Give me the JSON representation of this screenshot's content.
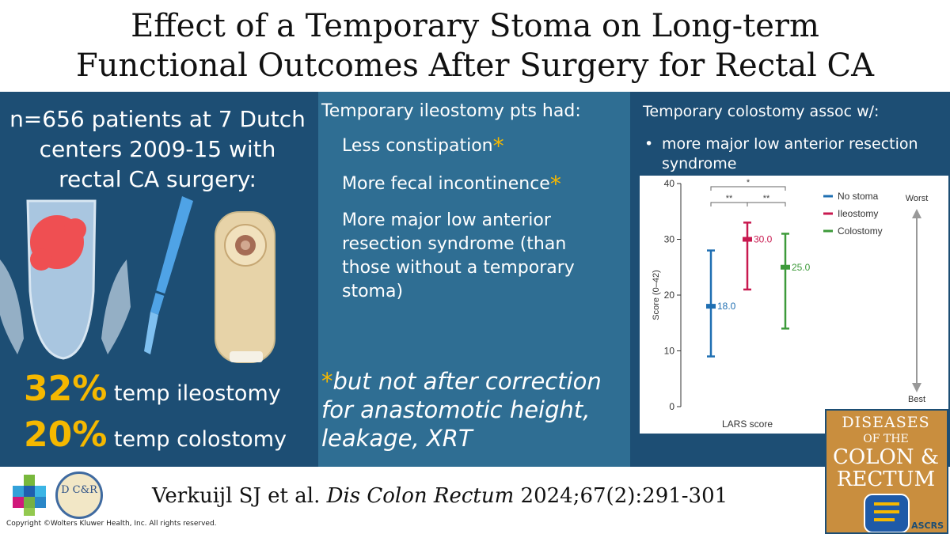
{
  "title": {
    "line1": "Effect of a Temporary Stoma on Long-term",
    "line2": "Functional Outcomes After Surgery for Rectal CA"
  },
  "left": {
    "heading": "n=656 patients at 7 Dutch centers 2009-15 with rectal CA surgery:",
    "stat1_pct": "32%",
    "stat1_label": "temp ileostomy",
    "stat2_pct": "20%",
    "stat2_label": "temp colostomy"
  },
  "middle": {
    "heading": "Temporary ileostomy pts had:",
    "items": [
      "Less constipation",
      "More fecal incontinence",
      "More major low anterior resection syndrome (than those without a temporary stoma)"
    ],
    "star": "*",
    "footnote": "but not after correction for anastomotic height, leakage, XRT"
  },
  "right": {
    "heading": "Temporary colostomy assoc w/:",
    "bullet": "more major low anterior resection syndrome"
  },
  "chart_data": {
    "type": "error-bar",
    "xlabel": "LARS score",
    "ylabel": "Score (0–42)",
    "ylim": [
      0,
      40
    ],
    "yticks": [
      0,
      10,
      20,
      30,
      40
    ],
    "series": [
      {
        "name": "No stoma",
        "value": 18.0,
        "label": "18.0",
        "low": 9,
        "high": 28,
        "color": "#1f6fb2"
      },
      {
        "name": "Ileostomy",
        "value": 30.0,
        "label": "30.0",
        "low": 21,
        "high": 33,
        "color": "#c8194f"
      },
      {
        "name": "Colostomy",
        "value": 25.0,
        "label": "25.0",
        "low": 14,
        "high": 31,
        "color": "#3d9a3a"
      }
    ],
    "significance": [
      "*",
      "**",
      "**"
    ],
    "scale_top": "Worst",
    "scale_bottom": "Best",
    "legend": "top-right"
  },
  "journal": {
    "line1": "DISEASES",
    "line2": "OF THE",
    "line3": "COLON &",
    "line4": "RECTUM",
    "org": "ASCRS"
  },
  "citation": {
    "authors": "Verkuijl SJ et al.",
    "journal": "Dis Colon Rectum",
    "ref": "2024;67(2):291-301"
  },
  "logo_text": {
    "dcr": "D C&R"
  },
  "copyright": "Copyright ©Wolters Kluwer Health, Inc. All rights reserved."
}
